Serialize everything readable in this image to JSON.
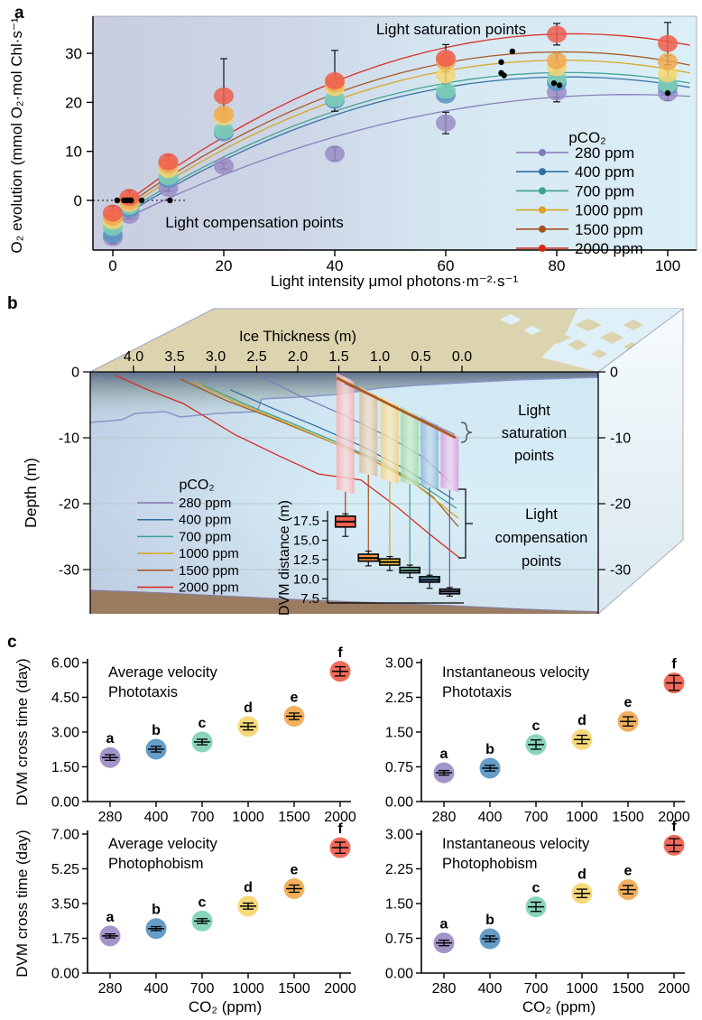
{
  "panel_labels": {
    "a": "a",
    "b": "b",
    "c": "c"
  },
  "colors": {
    "markers": [
      "#9b8cc6",
      "#5795c1",
      "#7fd0b6",
      "#f6d56f",
      "#f0a951",
      "#ef5e4d"
    ],
    "lines": [
      "#8678b8",
      "#2f6f9f",
      "#3fa08f",
      "#d6a41f",
      "#a6531d",
      "#d9281c"
    ]
  },
  "chart_data": [
    {
      "id": "panel_a_pi_curves",
      "type": "scatter",
      "xlabel": "Light intensity μmol photons·m⁻²·s⁻¹",
      "ylabel": "O₂ evolution (mmol O₂·mol Chl·s⁻¹",
      "xticks": [
        0,
        20,
        40,
        60,
        80,
        100
      ],
      "yticks": [
        0,
        10,
        20,
        30
      ],
      "xlim": [
        -4,
        105
      ],
      "ylim": [
        -9,
        36
      ],
      "legend_title": "pCO₂",
      "annotations": {
        "saturation": "Light saturation points",
        "compensation": "Light compensation points"
      },
      "x": [
        0,
        3,
        10,
        20,
        40,
        60,
        80,
        100
      ],
      "series": [
        {
          "name": "280 ppm",
          "line_color": "#8678b8",
          "marker_color": "#9b8cc6",
          "values": [
            -7.6,
            -3.0,
            2.5,
            7.0,
            9.5,
            15.8,
            22.1,
            21.9
          ],
          "errors": [
            1.2,
            0.8,
            0.6,
            0.6,
            1.3,
            2.2,
            2.0,
            1.5
          ],
          "curve": {
            "y0": -5.0,
            "peak": 21.6,
            "xpeak": 93
          }
        },
        {
          "name": "400 ppm",
          "line_color": "#2f6f9f",
          "marker_color": "#5795c1",
          "values": [
            -7.0,
            -1.8,
            4.3,
            13.8,
            20.4,
            21.5,
            24.0,
            23.2
          ],
          "errors": [
            1.8,
            0.9,
            0.8,
            0.8,
            0.8,
            0.8,
            3.0,
            0.9
          ],
          "curve": {
            "y0": -4.5,
            "peak": 25.2,
            "xpeak": 82
          }
        },
        {
          "name": "700 ppm",
          "line_color": "#3fa08f",
          "marker_color": "#7fd0b6",
          "values": [
            -5.5,
            -1.2,
            4.8,
            14.3,
            20.8,
            22.4,
            24.9,
            23.7
          ],
          "errors": [
            1.2,
            0.8,
            0.8,
            0.8,
            0.8,
            1.2,
            1.5,
            0.9
          ],
          "curve": {
            "y0": -4.0,
            "peak": 26.1,
            "xpeak": 82
          }
        },
        {
          "name": "1000 ppm",
          "line_color": "#d6a41f",
          "marker_color": "#f6d56f",
          "values": [
            -4.2,
            -0.6,
            6.3,
            17.0,
            23.0,
            25.6,
            27.1,
            25.8
          ],
          "errors": [
            1.5,
            0.9,
            0.9,
            1.0,
            1.0,
            1.8,
            1.2,
            1.0
          ],
          "curve": {
            "y0": -3.5,
            "peak": 28.6,
            "xpeak": 81
          }
        },
        {
          "name": "1500 ppm",
          "line_color": "#a6531d",
          "marker_color": "#f0a951",
          "values": [
            -3.4,
            -0.2,
            7.2,
            17.6,
            23.8,
            28.3,
            28.5,
            28.3
          ],
          "errors": [
            1.2,
            0.9,
            0.9,
            0.9,
            1.2,
            1.0,
            1.5,
            1.2
          ],
          "curve": {
            "y0": -3.0,
            "peak": 30.3,
            "xpeak": 81
          }
        },
        {
          "name": "2000 ppm",
          "line_color": "#d9281c",
          "marker_color": "#ef5e4d",
          "values": [
            -2.6,
            0.6,
            7.9,
            21.3,
            24.4,
            29.0,
            33.9,
            32.0
          ],
          "errors": [
            1.5,
            1.5,
            1.3,
            7.6,
            6.2,
            2.8,
            2.2,
            4.3
          ],
          "curve": {
            "y0": -2.5,
            "peak": 34.0,
            "xpeak": 83
          }
        }
      ],
      "saturation_points": [
        [
          72,
          30.4
        ],
        [
          70,
          28.2
        ],
        [
          70,
          26.0
        ],
        [
          70.5,
          25.5
        ],
        [
          79.5,
          23.9
        ],
        [
          80.5,
          23.5
        ],
        [
          100,
          21.9
        ]
      ],
      "compensation_points_x": [
        0.8,
        2.0,
        2.6,
        3.0,
        3.3,
        5.2,
        10.3
      ]
    },
    {
      "id": "panel_b_dvm_diagram",
      "type": "diagram",
      "ice_axis": {
        "label": "Ice Thickness (m)",
        "ticks": [
          "4.0",
          "3.5",
          "3.0",
          "2.5",
          "2.0",
          "1.5",
          "1.0",
          "0.5",
          "0.0"
        ]
      },
      "depth_axis": {
        "label": "Depth (m)",
        "ticks": [
          "0",
          "-10",
          "-20",
          "-30"
        ],
        "values": [
          0,
          -10,
          -20,
          -30
        ]
      },
      "legend": {
        "title": "pCO₂",
        "entries": [
          "280 ppm",
          "400 ppm",
          "700 ppm",
          "1000 ppm",
          "1500 ppm",
          "2000 ppm"
        ]
      },
      "saturation_label": [
        "Light",
        "saturation",
        "points"
      ],
      "compensation_label": [
        "Light",
        "compensation",
        "points"
      ],
      "bands": [
        {
          "name": "2000 ppm",
          "ice_thickness": 1.42,
          "top_depth": -0.8,
          "bottom_depth": -18.2,
          "fill": "#f6abab",
          "light": "#fbd9d9",
          "line": "#d9281c"
        },
        {
          "name": "1500 ppm",
          "ice_thickness": 1.14,
          "top_depth": -2.9,
          "bottom_depth": -15.6,
          "fill": "#d8b894",
          "light": "#eedfc9",
          "line": "#a6531d"
        },
        {
          "name": "1000 ppm",
          "ice_thickness": 0.88,
          "top_depth": -4.4,
          "bottom_depth": -16.6,
          "fill": "#f2cf7e",
          "light": "#f9e9bd",
          "line": "#d6a41f"
        },
        {
          "name": "700 ppm",
          "ice_thickness": 0.635,
          "top_depth": -5.9,
          "bottom_depth": -17.0,
          "fill": "#9ed89e",
          "light": "#cdeccc",
          "line": "#3fa08f"
        },
        {
          "name": "400 ppm",
          "ice_thickness": 0.395,
          "top_depth": -7.4,
          "bottom_depth": -17.5,
          "fill": "#88b2d8",
          "light": "#c4d9ec",
          "line": "#2f6f9f"
        },
        {
          "name": "280 ppm",
          "ice_thickness": 0.15,
          "top_depth": -9.2,
          "bottom_depth": -17.9,
          "fill": "#d49ad8",
          "light": "#ecd0ee",
          "line": "#6a5a9e"
        }
      ],
      "compensation_curves": [
        {
          "name": "2000 ppm",
          "color": "#d9281c",
          "points": [
            [
              128,
              -0.5
            ],
            [
              160,
              -2.5
            ],
            [
              203,
              -4.8
            ],
            [
              260,
              -9.5
            ],
            [
              310,
              -12.8
            ],
            [
              353,
              -15.5
            ],
            [
              400,
              -16.4
            ],
            [
              440,
              -20.5
            ],
            [
              475,
              -24.5
            ],
            [
              510,
              -28.3
            ]
          ]
        },
        {
          "name": "1500 ppm",
          "color": "#a6531d",
          "points": [
            [
              200,
              -1.1
            ],
            [
              250,
              -4.3
            ],
            [
              300,
              -6.9
            ],
            [
              350,
              -9.7
            ],
            [
              400,
              -12.5
            ],
            [
              450,
              -16.0
            ],
            [
              480,
              -19.0
            ],
            [
              508,
              -23.5
            ]
          ]
        },
        {
          "name": "1000 ppm",
          "color": "#d6a41f",
          "points": [
            [
              215,
              -1.5
            ],
            [
              260,
              -4.5
            ],
            [
              310,
              -7.3
            ],
            [
              360,
              -10.2
            ],
            [
              410,
              -13.2
            ],
            [
              460,
              -17.0
            ],
            [
              508,
              -22.2
            ]
          ]
        },
        {
          "name": "700 ppm",
          "color": "#3fa08f",
          "points": [
            [
              225,
              -2.0
            ],
            [
              270,
              -4.8
            ],
            [
              320,
              -7.6
            ],
            [
              370,
              -10.5
            ],
            [
              420,
              -13.5
            ],
            [
              465,
              -17.0
            ],
            [
              506,
              -20.7
            ]
          ]
        },
        {
          "name": "400 ppm",
          "color": "#2f6f9f",
          "points": [
            [
              255,
              -2.7
            ],
            [
              300,
              -5.4
            ],
            [
              350,
              -8.2
            ],
            [
              400,
              -11.2
            ],
            [
              450,
              -14.8
            ],
            [
              503,
              -19.4
            ]
          ]
        },
        {
          "name": "280 ppm",
          "color": "#8678b8",
          "points": [
            [
              288,
              -0.6
            ],
            [
              330,
              -3.5
            ],
            [
              380,
              -6.5
            ],
            [
              430,
              -9.8
            ],
            [
              470,
              -13.0
            ],
            [
              500,
              -16.9
            ]
          ]
        }
      ],
      "saturation_line": {
        "color": "#b05a1a",
        "from": [
          373,
          -0.9
        ],
        "to": [
          505,
          -10.0
        ]
      },
      "saturation_line2": {
        "color": "#8678b8",
        "from": [
          382,
          -1.8
        ],
        "to": [
          504,
          -9.5
        ]
      },
      "boxplot": {
        "ylabel": "DVM distance (m)",
        "yticks": [
          "17.5",
          "15.0",
          "12.5",
          "10.0",
          "7.5"
        ],
        "ytick_values": [
          17.5,
          15.0,
          12.5,
          10.0,
          7.5
        ],
        "boxes": [
          {
            "name": "2000 ppm",
            "fill": "#f0604f",
            "median": 17.4,
            "q1": 16.7,
            "q3": 18.1,
            "lo": 15.5,
            "hi": 18.4
          },
          {
            "name": "1500 ppm",
            "fill": "#f0944f",
            "median": 12.7,
            "q1": 12.3,
            "q3": 13.2,
            "lo": 11.7,
            "hi": 13.6
          },
          {
            "name": "1000 ppm",
            "fill": "#e8c33f",
            "median": 12.2,
            "q1": 11.8,
            "q3": 12.6,
            "lo": 11.1,
            "hi": 12.9
          },
          {
            "name": "700 ppm",
            "fill": "#7fccb8",
            "median": 11.1,
            "q1": 10.8,
            "q3": 11.5,
            "lo": 10.2,
            "hi": 11.8
          },
          {
            "name": "400 ppm",
            "fill": "#4f94b8",
            "median": 9.9,
            "q1": 9.6,
            "q3": 10.3,
            "lo": 8.8,
            "hi": 10.5
          },
          {
            "name": "280 ppm",
            "fill": "#8f86c0",
            "median": 8.4,
            "q1": 8.1,
            "q3": 8.7,
            "lo": 7.8,
            "hi": 8.9
          }
        ]
      }
    },
    {
      "id": "avg_velocity_phototaxis",
      "type": "scatter",
      "title_lines": [
        "Average velocity",
        "Phototaxis"
      ],
      "ylabel": "DVM cross time (day)",
      "categories": [
        "280",
        "400",
        "700",
        "1000",
        "1500",
        "2000"
      ],
      "letters": [
        "a",
        "b",
        "c",
        "d",
        "e",
        "f"
      ],
      "ymax": 6,
      "yticks": [
        "0.00",
        "1.50",
        "3.00",
        "4.50",
        "6.00"
      ],
      "values": [
        1.9,
        2.26,
        2.57,
        3.24,
        3.68,
        5.62
      ],
      "errors": [
        0.12,
        0.12,
        0.12,
        0.15,
        0.14,
        0.2
      ]
    },
    {
      "id": "inst_velocity_phototaxis",
      "type": "scatter",
      "title_lines": [
        "Instantaneous velocity",
        "Phototaxis"
      ],
      "ylabel": "",
      "categories": [
        "280",
        "400",
        "700",
        "1000",
        "1500",
        "2000"
      ],
      "letters": [
        "a",
        "b",
        "c",
        "d",
        "e",
        "f"
      ],
      "ymax": 3,
      "yticks": [
        "0.00",
        "0.75",
        "1.50",
        "2.25",
        "3.00"
      ],
      "values": [
        0.62,
        0.72,
        1.23,
        1.34,
        1.73,
        2.56
      ],
      "errors": [
        0.05,
        0.06,
        0.1,
        0.09,
        0.1,
        0.16
      ]
    },
    {
      "id": "avg_velocity_photophobism",
      "type": "scatter",
      "title_lines": [
        "Average velocity",
        "Photophobism"
      ],
      "ylabel": "DVM cross time (day)",
      "xlabel": "CO₂ (ppm)",
      "categories": [
        "280",
        "400",
        "700",
        "1000",
        "1500",
        "2000"
      ],
      "letters": [
        "a",
        "b",
        "c",
        "d",
        "e",
        "f"
      ],
      "ymax": 7,
      "yticks": [
        "0.00",
        "1.75",
        "3.50",
        "5.25",
        "7.00"
      ],
      "values": [
        1.87,
        2.24,
        2.62,
        3.37,
        4.25,
        6.31
      ],
      "errors": [
        0.1,
        0.1,
        0.12,
        0.15,
        0.18,
        0.28
      ]
    },
    {
      "id": "inst_velocity_photophobism",
      "type": "scatter",
      "title_lines": [
        "Instantaneous velocity",
        "Photophobism"
      ],
      "ylabel": "",
      "xlabel": "CO₂ (ppm)",
      "categories": [
        "280",
        "400",
        "700",
        "1000",
        "1500",
        "2000"
      ],
      "letters": [
        "a",
        "b",
        "c",
        "d",
        "e",
        "f"
      ],
      "ymax": 3,
      "yticks": [
        "0.00",
        "0.75",
        "1.50",
        "2.25",
        "3.00"
      ],
      "values": [
        0.65,
        0.74,
        1.43,
        1.72,
        1.8,
        2.76
      ],
      "errors": [
        0.06,
        0.06,
        0.1,
        0.09,
        0.09,
        0.14
      ]
    }
  ]
}
